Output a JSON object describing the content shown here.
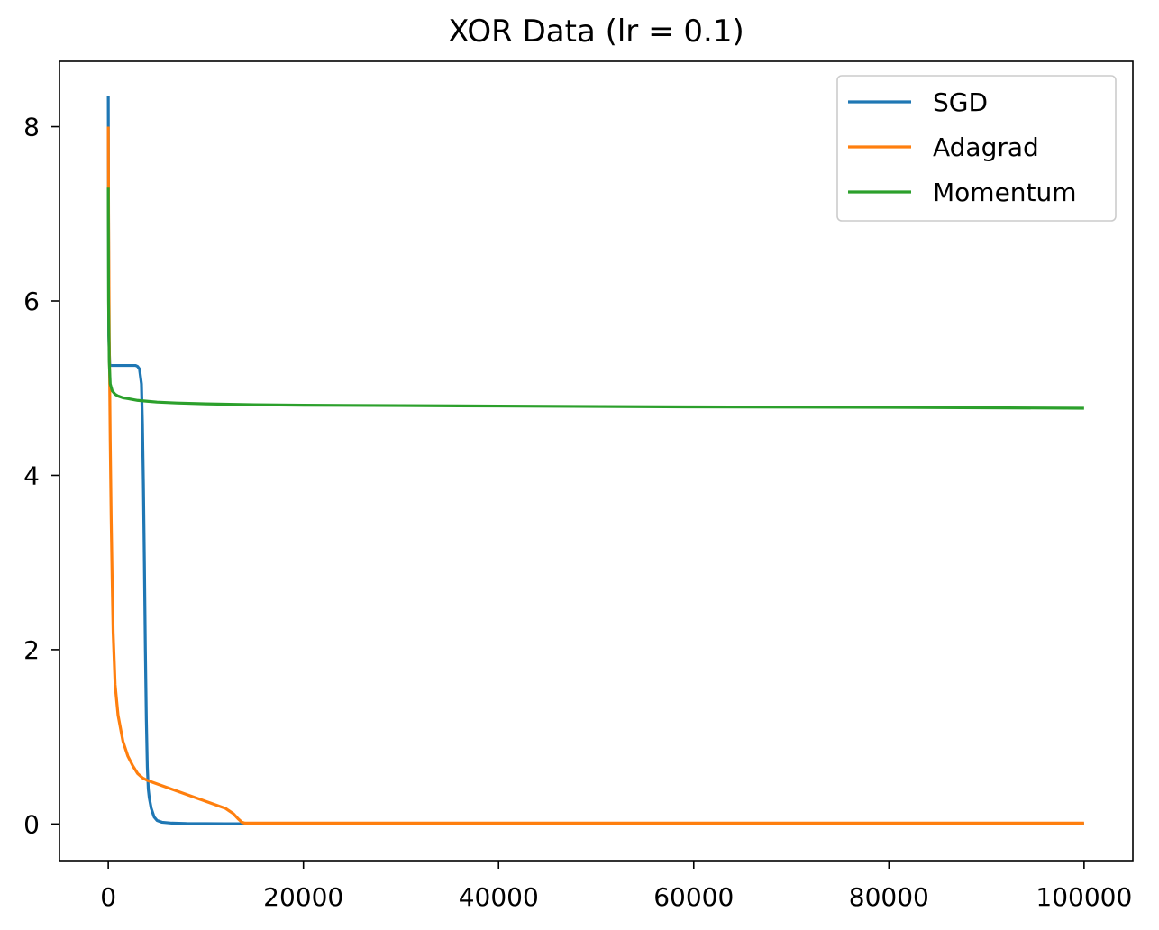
{
  "chart_data": {
    "type": "line",
    "title": "XOR Data (lr = 0.1)",
    "xlabel": "",
    "ylabel": "",
    "xlim": [
      -5000,
      105000
    ],
    "ylim": [
      -0.42,
      8.75
    ],
    "xticks": [
      0,
      20000,
      40000,
      60000,
      80000,
      100000
    ],
    "xtick_labels": [
      "0",
      "20000",
      "40000",
      "60000",
      "80000",
      "100000"
    ],
    "yticks": [
      0,
      2,
      4,
      6,
      8
    ],
    "ytick_labels": [
      "0",
      "2",
      "4",
      "6",
      "8"
    ],
    "grid": false,
    "legend_position": "top-right",
    "series": [
      {
        "name": "SGD",
        "color": "#1f77b4",
        "x": [
          0,
          50,
          150,
          300,
          600,
          1200,
          2000,
          2800,
          3000,
          3200,
          3400,
          3500,
          3600,
          3700,
          3800,
          3900,
          4000,
          4100,
          4200,
          4400,
          4700,
          5000,
          5500,
          6500,
          8000,
          12000,
          20000,
          40000,
          60000,
          80000,
          100000
        ],
        "y": [
          8.35,
          5.6,
          5.27,
          5.26,
          5.26,
          5.26,
          5.26,
          5.26,
          5.25,
          5.22,
          5.05,
          4.6,
          3.9,
          3.0,
          2.0,
          1.2,
          0.65,
          0.4,
          0.3,
          0.18,
          0.08,
          0.04,
          0.02,
          0.01,
          0.005,
          0.003,
          0.002,
          0.001,
          0.001,
          0.001,
          0.001
        ]
      },
      {
        "name": "Adagrad",
        "color": "#ff7f0e",
        "x": [
          0,
          30,
          100,
          200,
          300,
          400,
          500,
          700,
          1000,
          1500,
          2000,
          2500,
          3000,
          3500,
          4000,
          5000,
          6000,
          7000,
          8000,
          9000,
          10000,
          11000,
          12000,
          12800,
          13300,
          13700,
          14000,
          16000,
          20000,
          40000,
          60000,
          80000,
          100000
        ],
        "y": [
          8.0,
          7.0,
          5.6,
          4.4,
          3.5,
          2.8,
          2.2,
          1.6,
          1.25,
          0.95,
          0.78,
          0.67,
          0.58,
          0.53,
          0.5,
          0.46,
          0.42,
          0.38,
          0.34,
          0.3,
          0.26,
          0.22,
          0.18,
          0.12,
          0.06,
          0.02,
          0.01,
          0.01,
          0.01,
          0.01,
          0.01,
          0.01,
          0.01
        ]
      },
      {
        "name": "Momentum",
        "color": "#2ca02c",
        "x": [
          0,
          30,
          100,
          200,
          400,
          700,
          1000,
          1500,
          2000,
          3000,
          4000,
          5000,
          7000,
          10000,
          15000,
          20000,
          30000,
          40000,
          60000,
          80000,
          100000
        ],
        "y": [
          7.3,
          6.0,
          5.3,
          5.05,
          4.97,
          4.93,
          4.91,
          4.89,
          4.88,
          4.86,
          4.85,
          4.84,
          4.83,
          4.82,
          4.81,
          4.805,
          4.8,
          4.795,
          4.785,
          4.78,
          4.77
        ]
      }
    ]
  }
}
